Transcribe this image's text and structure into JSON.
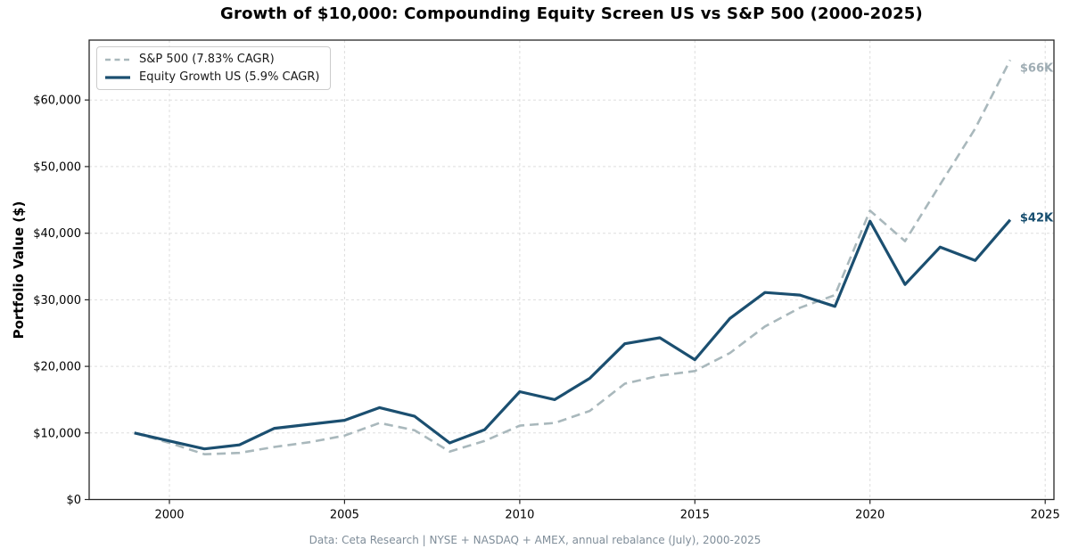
{
  "chart_data": {
    "type": "line",
    "title": "Growth of $10,000: Compounding Equity Screen US vs S&P 500 (2000-2025)",
    "xlabel": "",
    "ylabel": "Portfolio Value ($)",
    "x": [
      1999,
      2000,
      2001,
      2002,
      2003,
      2004,
      2005,
      2006,
      2007,
      2008,
      2009,
      2010,
      2011,
      2012,
      2013,
      2014,
      2015,
      2016,
      2017,
      2018,
      2019,
      2020,
      2021,
      2022,
      2023,
      2024
    ],
    "series": [
      {
        "id": "sp500",
        "name": "S&P 500 (7.83% CAGR)",
        "style": "dashed",
        "color": "#a9b8bc",
        "end_label": "$66K",
        "end_label_color": "#9fadb4",
        "values": [
          10000,
          8500,
          6800,
          7000,
          7900,
          8600,
          9600,
          11500,
          10400,
          7200,
          8800,
          11100,
          11500,
          13300,
          17400,
          18600,
          19300,
          22000,
          26000,
          28800,
          30700,
          43400,
          38800,
          47300,
          55700,
          66000
        ]
      },
      {
        "id": "equity-growth-us",
        "name": "Equity Growth US (5.9% CAGR)",
        "style": "solid",
        "color": "#1b4f70",
        "end_label": "$42K",
        "end_label_color": "#174e6f",
        "values": [
          10000,
          8800,
          7600,
          8200,
          10700,
          11300,
          11900,
          13800,
          12500,
          8500,
          10500,
          16200,
          15000,
          18200,
          23400,
          24300,
          21000,
          27200,
          31100,
          30700,
          29000,
          41800,
          32300,
          37900,
          35900,
          42000
        ]
      }
    ],
    "x_ticks": [
      2000,
      2005,
      2010,
      2015,
      2020,
      2025
    ],
    "x_tick_labels": [
      "2000",
      "2005",
      "2010",
      "2015",
      "2020",
      "2025"
    ],
    "y_ticks": [
      0,
      10000,
      20000,
      30000,
      40000,
      50000,
      60000
    ],
    "y_tick_labels": [
      "$0",
      "$10,000",
      "$20,000",
      "$30,000",
      "$40,000",
      "$50,000",
      "$60,000"
    ],
    "xlim": [
      1997.71,
      2025.25
    ],
    "ylim": [
      0,
      69000
    ],
    "grid": true,
    "legend_position": "upper-left",
    "colors": {
      "grid": "#dddddd",
      "axis": "#262626",
      "tick_label": "#000000"
    }
  },
  "footer": {
    "text": "Data: Ceta Research | NYSE + NASDAQ + AMEX, annual rebalance (July), 2000-2025"
  }
}
